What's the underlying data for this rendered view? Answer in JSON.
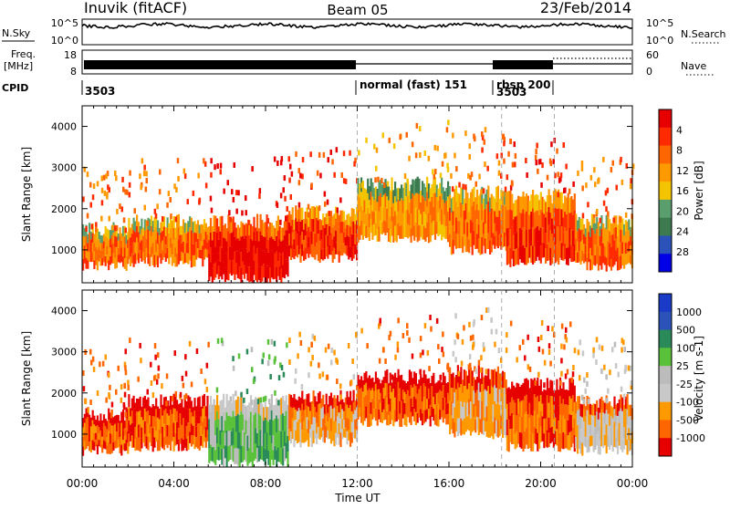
{
  "header": {
    "station": "Inuvik (fitACF)",
    "beam": "Beam 05",
    "date": "23/Feb/2014"
  },
  "noise_panel": {
    "left_label": "N.Sky",
    "right_label": "N.Search",
    "left_ticks": [
      "10^5",
      "10^0"
    ],
    "right_ticks": [
      "10^5",
      "10^0"
    ]
  },
  "freq_panel": {
    "left_label_1": "Freq.",
    "left_label_2": "[MHz]",
    "right_label": "Nave",
    "left_ticks": [
      "18",
      "8"
    ],
    "right_ticks": [
      "60",
      "0"
    ]
  },
  "cpid_panel": {
    "label": "CPID",
    "segments": [
      {
        "text": "3503"
      },
      {
        "text": "normal (fast) 151"
      },
      {
        "text": "rbsp 200"
      },
      {
        "text": "3503"
      }
    ]
  },
  "time_axis": {
    "label": "Time UT",
    "ticks": [
      "00:00",
      "04:00",
      "08:00",
      "12:00",
      "16:00",
      "20:00",
      "00:00"
    ]
  },
  "colors": {
    "power": [
      "#0000e6",
      "#2a52b8",
      "#3d7a4f",
      "#5a9e6e",
      "#f5c400",
      "#ff9900",
      "#ff6600",
      "#ff2a00",
      "#e60000"
    ],
    "velocity": [
      "#e60000",
      "#ff6600",
      "#ff9900",
      "#c8c8c8",
      "#bcbcbc",
      "#5ac23a",
      "#2a8a5a",
      "#2a52b8",
      "#1a3ac8"
    ]
  },
  "chart_data": [
    {
      "type": "heatmap",
      "title": "",
      "xlabel": "",
      "ylabel": "Slant Range [km]",
      "y_ticks": [
        "1000",
        "2000",
        "3000",
        "4000"
      ],
      "colorbar": {
        "label": "Power [dB]",
        "ticks": [
          "4",
          "8",
          "12",
          "16",
          "20",
          "24",
          "28"
        ]
      },
      "xlim": [
        "00:00",
        "24:00"
      ],
      "ylim": [
        200,
        4500
      ],
      "bands": [
        {
          "t0": 0.0,
          "t1": 2.0,
          "r_low": 600,
          "r_high": 1500,
          "level": 6
        },
        {
          "t0": 2.0,
          "t1": 5.5,
          "r_low": 700,
          "r_high": 1700,
          "level": 6
        },
        {
          "t0": 5.5,
          "t1": 9.0,
          "r_low": 300,
          "r_high": 1700,
          "level": 8
        },
        {
          "t0": 9.0,
          "t1": 12.0,
          "r_low": 800,
          "r_high": 1900,
          "level": 7
        },
        {
          "t0": 12.0,
          "t1": 16.0,
          "r_low": 1300,
          "r_high": 2600,
          "level": 5
        },
        {
          "t0": 16.0,
          "t1": 18.5,
          "r_low": 1000,
          "r_high": 2400,
          "level": 6
        },
        {
          "t0": 18.5,
          "t1": 21.5,
          "r_low": 700,
          "r_high": 2300,
          "level": 7
        },
        {
          "t0": 21.5,
          "t1": 24.0,
          "r_low": 600,
          "r_high": 1700,
          "level": 6
        }
      ]
    },
    {
      "type": "heatmap",
      "title": "",
      "xlabel": "Time UT",
      "ylabel": "Slant Range [km]",
      "y_ticks": [
        "1000",
        "2000",
        "3000",
        "4000"
      ],
      "colorbar": {
        "label": "Velocity [m s-1]",
        "ticks": [
          "1000",
          "500",
          "100",
          "25",
          "-25",
          "-100",
          "-500",
          "-1000"
        ]
      },
      "xlim": [
        "00:00",
        "24:00"
      ],
      "ylim": [
        200,
        4500
      ],
      "bands": [
        {
          "t0": 0.0,
          "t1": 2.0,
          "r_low": 600,
          "r_high": 1500,
          "level": 1
        },
        {
          "t0": 2.0,
          "t1": 5.5,
          "r_low": 700,
          "r_high": 1800,
          "level": 1
        },
        {
          "t0": 5.5,
          "t1": 9.0,
          "r_low": 300,
          "r_high": 1800,
          "level": 5
        },
        {
          "t0": 9.0,
          "t1": 12.0,
          "r_low": 800,
          "r_high": 1900,
          "level": 2
        },
        {
          "t0": 12.0,
          "t1": 16.0,
          "r_low": 1300,
          "r_high": 2400,
          "level": 1
        },
        {
          "t0": 16.0,
          "t1": 18.5,
          "r_low": 1000,
          "r_high": 2500,
          "level": 2
        },
        {
          "t0": 18.5,
          "t1": 21.5,
          "r_low": 700,
          "r_high": 2200,
          "level": 1
        },
        {
          "t0": 21.5,
          "t1": 24.0,
          "r_low": 600,
          "r_high": 1800,
          "level": 3
        }
      ]
    }
  ]
}
